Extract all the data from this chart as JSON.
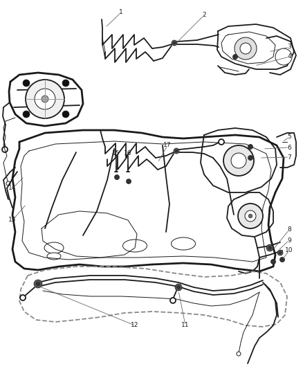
{
  "bg_color": "#ffffff",
  "line_color": "#1a1a1a",
  "label_color": "#666666",
  "figsize": [
    4.38,
    5.33
  ],
  "dpi": 100,
  "lw_main": 1.3,
  "lw_thick": 2.0,
  "lw_thin": 0.7,
  "label_fontsize": 6.5,
  "labels": [
    [
      "1",
      175,
      18
    ],
    [
      "2",
      295,
      22
    ],
    [
      "3",
      418,
      68
    ],
    [
      "4",
      418,
      82
    ],
    [
      "5",
      418,
      198
    ],
    [
      "6",
      418,
      213
    ],
    [
      "7",
      418,
      227
    ],
    [
      "8",
      418,
      332
    ],
    [
      "9",
      418,
      347
    ],
    [
      "10",
      418,
      362
    ],
    [
      "11",
      268,
      470
    ],
    [
      "12",
      195,
      470
    ],
    [
      "13",
      18,
      318
    ],
    [
      "14",
      18,
      272
    ],
    [
      "15",
      168,
      222
    ],
    [
      "16",
      185,
      222
    ],
    [
      "17",
      242,
      210
    ]
  ]
}
